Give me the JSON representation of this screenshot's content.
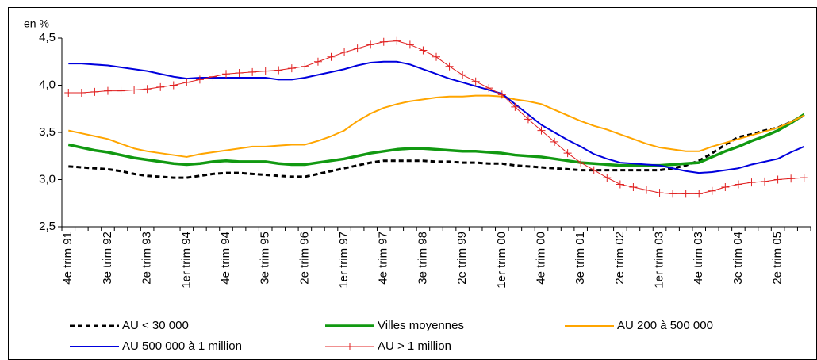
{
  "chart_data": {
    "type": "line",
    "y_label": "en %",
    "ylim": [
      2.5,
      4.5
    ],
    "yticks": [
      {
        "value": 2.5,
        "label": "2,5"
      },
      {
        "value": 3.0,
        "label": "3,0"
      },
      {
        "value": 3.5,
        "label": "3,5"
      },
      {
        "value": 4.0,
        "label": "4,0"
      },
      {
        "value": 4.5,
        "label": "4,5"
      }
    ],
    "grid": false,
    "legend": "bottom",
    "categories": [
      "4e trim 91",
      null,
      null,
      "3e trim 92",
      null,
      null,
      "2e trim 93",
      null,
      null,
      "1er trim 94",
      null,
      null,
      "4e trim 94",
      null,
      null,
      "3e trim 95",
      null,
      null,
      "2e trim 96",
      null,
      null,
      "1er trim 97",
      null,
      null,
      "4e trim 97",
      null,
      null,
      "3e trim 98",
      null,
      null,
      "2e trim 99",
      null,
      null,
      "1er trim 00",
      null,
      null,
      "4e trim 00",
      null,
      null,
      "3e trim 01",
      null,
      null,
      "2e trim 02",
      null,
      null,
      "1er trim 03",
      null,
      null,
      "4e trim 03",
      null,
      null,
      "3e trim 04",
      null,
      null,
      "2e trim 05",
      null,
      null
    ],
    "series": [
      {
        "name": "AU < 30 000",
        "color": "#000000",
        "style": "dashed",
        "values": [
          3.14,
          3.13,
          3.12,
          3.11,
          3.09,
          3.06,
          3.04,
          3.03,
          3.02,
          3.02,
          3.04,
          3.06,
          3.07,
          3.07,
          3.06,
          3.05,
          3.04,
          3.03,
          3.03,
          3.06,
          3.09,
          3.12,
          3.15,
          3.18,
          3.2,
          3.2,
          3.2,
          3.2,
          3.19,
          3.19,
          3.18,
          3.18,
          3.17,
          3.17,
          3.15,
          3.14,
          3.13,
          3.12,
          3.11,
          3.1,
          3.1,
          3.1,
          3.1,
          3.1,
          3.1,
          3.1,
          3.12,
          3.15,
          3.2,
          3.28,
          3.37,
          3.45,
          3.48,
          3.52,
          3.55,
          3.61,
          3.68
        ]
      },
      {
        "name": "Villes moyennes",
        "color": "#119911",
        "style": "solid",
        "values": [
          3.37,
          3.34,
          3.31,
          3.29,
          3.26,
          3.23,
          3.21,
          3.19,
          3.17,
          3.16,
          3.17,
          3.19,
          3.2,
          3.19,
          3.19,
          3.19,
          3.17,
          3.16,
          3.16,
          3.18,
          3.2,
          3.22,
          3.25,
          3.28,
          3.3,
          3.32,
          3.33,
          3.33,
          3.32,
          3.31,
          3.3,
          3.3,
          3.29,
          3.28,
          3.26,
          3.25,
          3.24,
          3.22,
          3.2,
          3.18,
          3.17,
          3.16,
          3.15,
          3.15,
          3.15,
          3.15,
          3.16,
          3.17,
          3.18,
          3.24,
          3.3,
          3.35,
          3.41,
          3.46,
          3.52,
          3.6,
          3.69
        ]
      },
      {
        "name": "AU 200 à 500 000",
        "color": "#ffa500",
        "style": "solid",
        "values": [
          3.52,
          3.49,
          3.46,
          3.43,
          3.38,
          3.33,
          3.3,
          3.28,
          3.26,
          3.24,
          3.27,
          3.29,
          3.31,
          3.33,
          3.35,
          3.35,
          3.36,
          3.37,
          3.37,
          3.41,
          3.46,
          3.52,
          3.62,
          3.7,
          3.76,
          3.8,
          3.83,
          3.85,
          3.87,
          3.88,
          3.88,
          3.89,
          3.89,
          3.88,
          3.85,
          3.83,
          3.8,
          3.74,
          3.68,
          3.62,
          3.57,
          3.53,
          3.48,
          3.43,
          3.38,
          3.34,
          3.32,
          3.3,
          3.3,
          3.35,
          3.39,
          3.43,
          3.47,
          3.51,
          3.55,
          3.61,
          3.68
        ]
      },
      {
        "name": "AU 500 000 à 1 million",
        "color": "#0000dd",
        "style": "solid",
        "values": [
          4.23,
          4.23,
          4.22,
          4.21,
          4.19,
          4.17,
          4.15,
          4.12,
          4.09,
          4.07,
          4.08,
          4.08,
          4.08,
          4.08,
          4.08,
          4.08,
          4.06,
          4.06,
          4.08,
          4.11,
          4.14,
          4.17,
          4.21,
          4.24,
          4.25,
          4.25,
          4.22,
          4.17,
          4.12,
          4.07,
          4.03,
          3.99,
          3.95,
          3.91,
          3.8,
          3.69,
          3.58,
          3.5,
          3.42,
          3.35,
          3.27,
          3.22,
          3.18,
          3.17,
          3.16,
          3.15,
          3.12,
          3.09,
          3.07,
          3.08,
          3.1,
          3.12,
          3.16,
          3.19,
          3.22,
          3.29,
          3.35
        ]
      },
      {
        "name": "AU > 1 million",
        "color": "#e02020",
        "style": "solid",
        "marker": "plus",
        "values": [
          3.92,
          3.92,
          3.93,
          3.94,
          3.94,
          3.95,
          3.96,
          3.98,
          4.0,
          4.03,
          4.06,
          4.09,
          4.12,
          4.13,
          4.14,
          4.15,
          4.16,
          4.18,
          4.2,
          4.25,
          4.3,
          4.35,
          4.39,
          4.43,
          4.46,
          4.47,
          4.43,
          4.37,
          4.3,
          4.2,
          4.11,
          4.04,
          3.97,
          3.9,
          3.77,
          3.64,
          3.52,
          3.4,
          3.28,
          3.18,
          3.1,
          3.02,
          2.95,
          2.92,
          2.89,
          2.86,
          2.85,
          2.85,
          2.85,
          2.88,
          2.92,
          2.95,
          2.97,
          2.98,
          3.0,
          3.01,
          3.02
        ]
      }
    ]
  }
}
